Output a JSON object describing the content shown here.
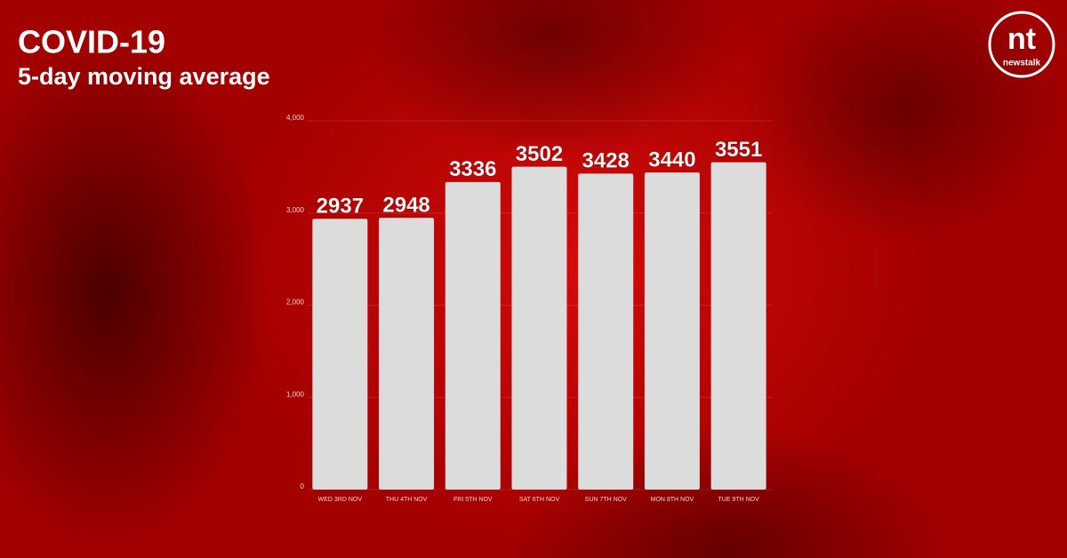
{
  "chart_data": {
    "type": "bar",
    "title": "COVID-19",
    "subtitle": "5-day moving average",
    "categories": [
      "WED 3RD NOV",
      "THU 4TH NOV",
      "FRI 5TH NOV",
      "SAT 6TH NOV",
      "SUN 7TH NOV",
      "MON 8TH NOV",
      "TUE 9TH NOV"
    ],
    "values": [
      2937,
      2948,
      3336,
      3502,
      3428,
      3440,
      3551
    ],
    "color": "#dcdcdc",
    "ylim": [
      0,
      4000
    ],
    "yticks": [
      0,
      {
        "value": 1000,
        "label": "1,000"
      },
      {
        "value": 2000,
        "label": "2,000"
      },
      {
        "value": 3000,
        "label": "3,000"
      },
      {
        "value": 4000,
        "label": "4,000"
      }
    ],
    "grid": true
  },
  "logo": {
    "mark": "nt",
    "text": "newstalk"
  }
}
